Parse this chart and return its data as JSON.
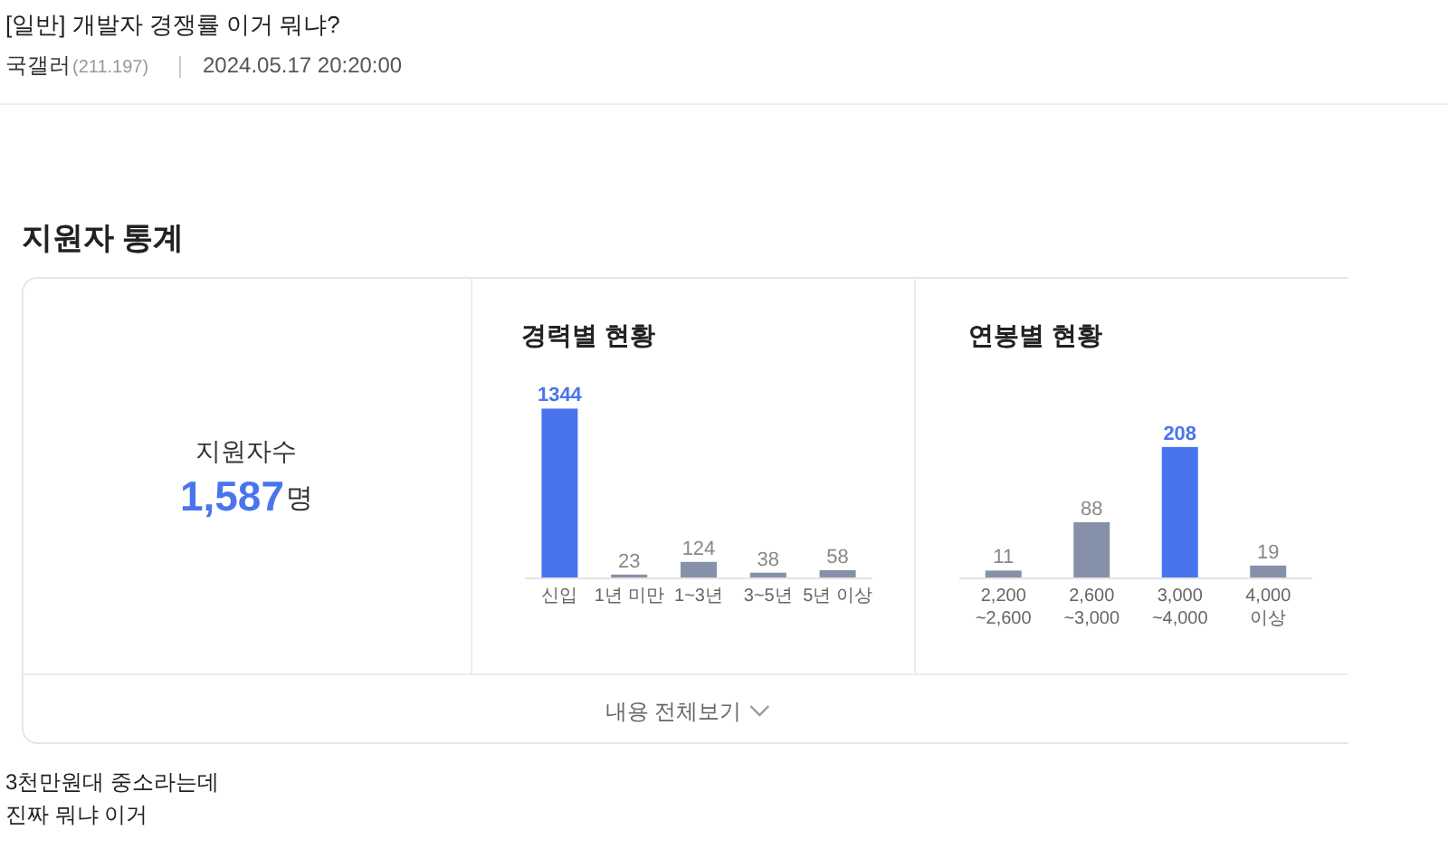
{
  "chart_data": [
    {
      "type": "other",
      "title": "[일반] 개발자 경쟁률 이거 뭐냐?",
      "annotations": [
        "국갤러",
        "(211.197)",
        "2024.05.17 20:20:00",
        "지원자 통계",
        "지원자수",
        "1,587",
        "명",
        "내용 전체보기",
        "3천만원대 중소라는데",
        "진짜 뭐냐 이거"
      ]
    },
    {
      "type": "bar",
      "title": "경력별 현황",
      "categories": [
        "신입",
        "1년 미만",
        "1~3년",
        "3~5년",
        "5년 이상"
      ],
      "values": [
        1344,
        23,
        124,
        38,
        58
      ],
      "colors": [
        "#4a74ef",
        "#8591a8",
        "#8591a8",
        "#8591a8",
        "#8591a8"
      ],
      "data_labels": true
    },
    {
      "type": "bar",
      "title": "연봉별 현황",
      "categories": [
        "2,200\n~2,600",
        "2,600\n~3,000",
        "3,000\n~4,000",
        "4,000\n이상"
      ],
      "values": [
        11,
        88,
        208,
        19
      ],
      "colors": [
        "#8591a8",
        "#8591a8",
        "#4a74ef",
        "#8591a8"
      ],
      "data_labels": true
    }
  ]
}
